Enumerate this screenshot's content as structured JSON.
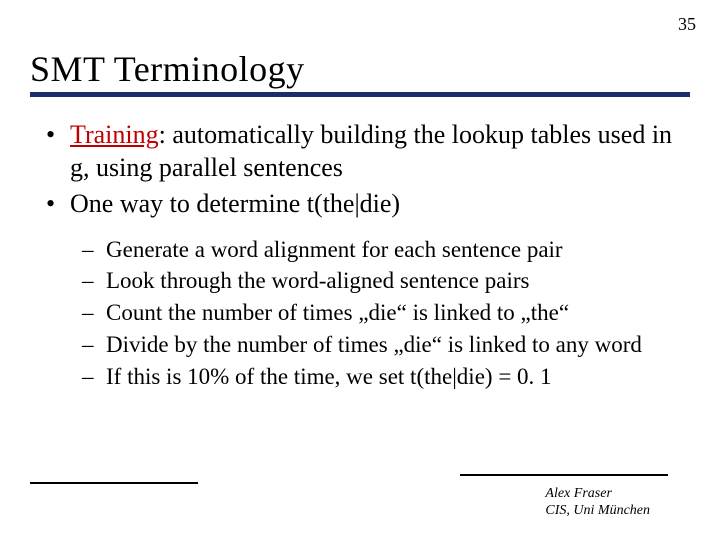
{
  "page_number": "35",
  "title": "SMT Terminology",
  "colors": {
    "title_rule": "#1a2e6e",
    "term_color": "#c00000",
    "text": "#000000",
    "background": "#ffffff"
  },
  "bullets": [
    {
      "term": "Training",
      "rest": ": automatically building the lookup tables used in g, using parallel sentences"
    },
    {
      "text": "One way to determine  t(the|die)"
    }
  ],
  "subbullets": [
    "Generate a word alignment for each sentence pair",
    "Look through the word-aligned sentence pairs",
    "Count the number of times „die“ is linked to „the“",
    "Divide by the number of times „die“ is linked to any word",
    "If this is 10% of the time, we set t(the|die) = 0. 1"
  ],
  "attribution": {
    "line1": "Alex Fraser",
    "line2": "CIS, Uni München"
  }
}
